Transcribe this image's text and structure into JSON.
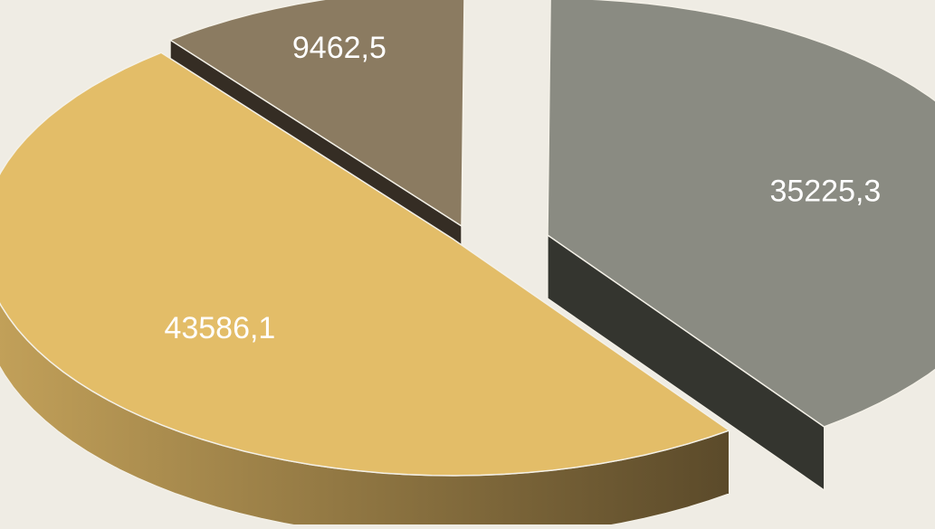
{
  "chart_data": {
    "type": "pie",
    "style": "3d-exploded",
    "title": "",
    "slices": [
      {
        "value": 43586.1,
        "label": "43586,1",
        "color": "#e3bd68",
        "side_light": "#c4a25a",
        "side_dark": "#5b4a2a"
      },
      {
        "value": 9462.5,
        "label": "9462,5",
        "color": "#8b7b61",
        "side_light": "#3d3328",
        "side_dark": "#352d24"
      },
      {
        "value": 35225.3,
        "label": "35225,3",
        "color": "#8a8b82",
        "side_light": "#3b3c36",
        "side_dark": "#34352f"
      }
    ],
    "legend": "none",
    "label_color": "#ffffff"
  },
  "colors": {
    "background": "#efece4",
    "edge": "#f4f1e8"
  }
}
